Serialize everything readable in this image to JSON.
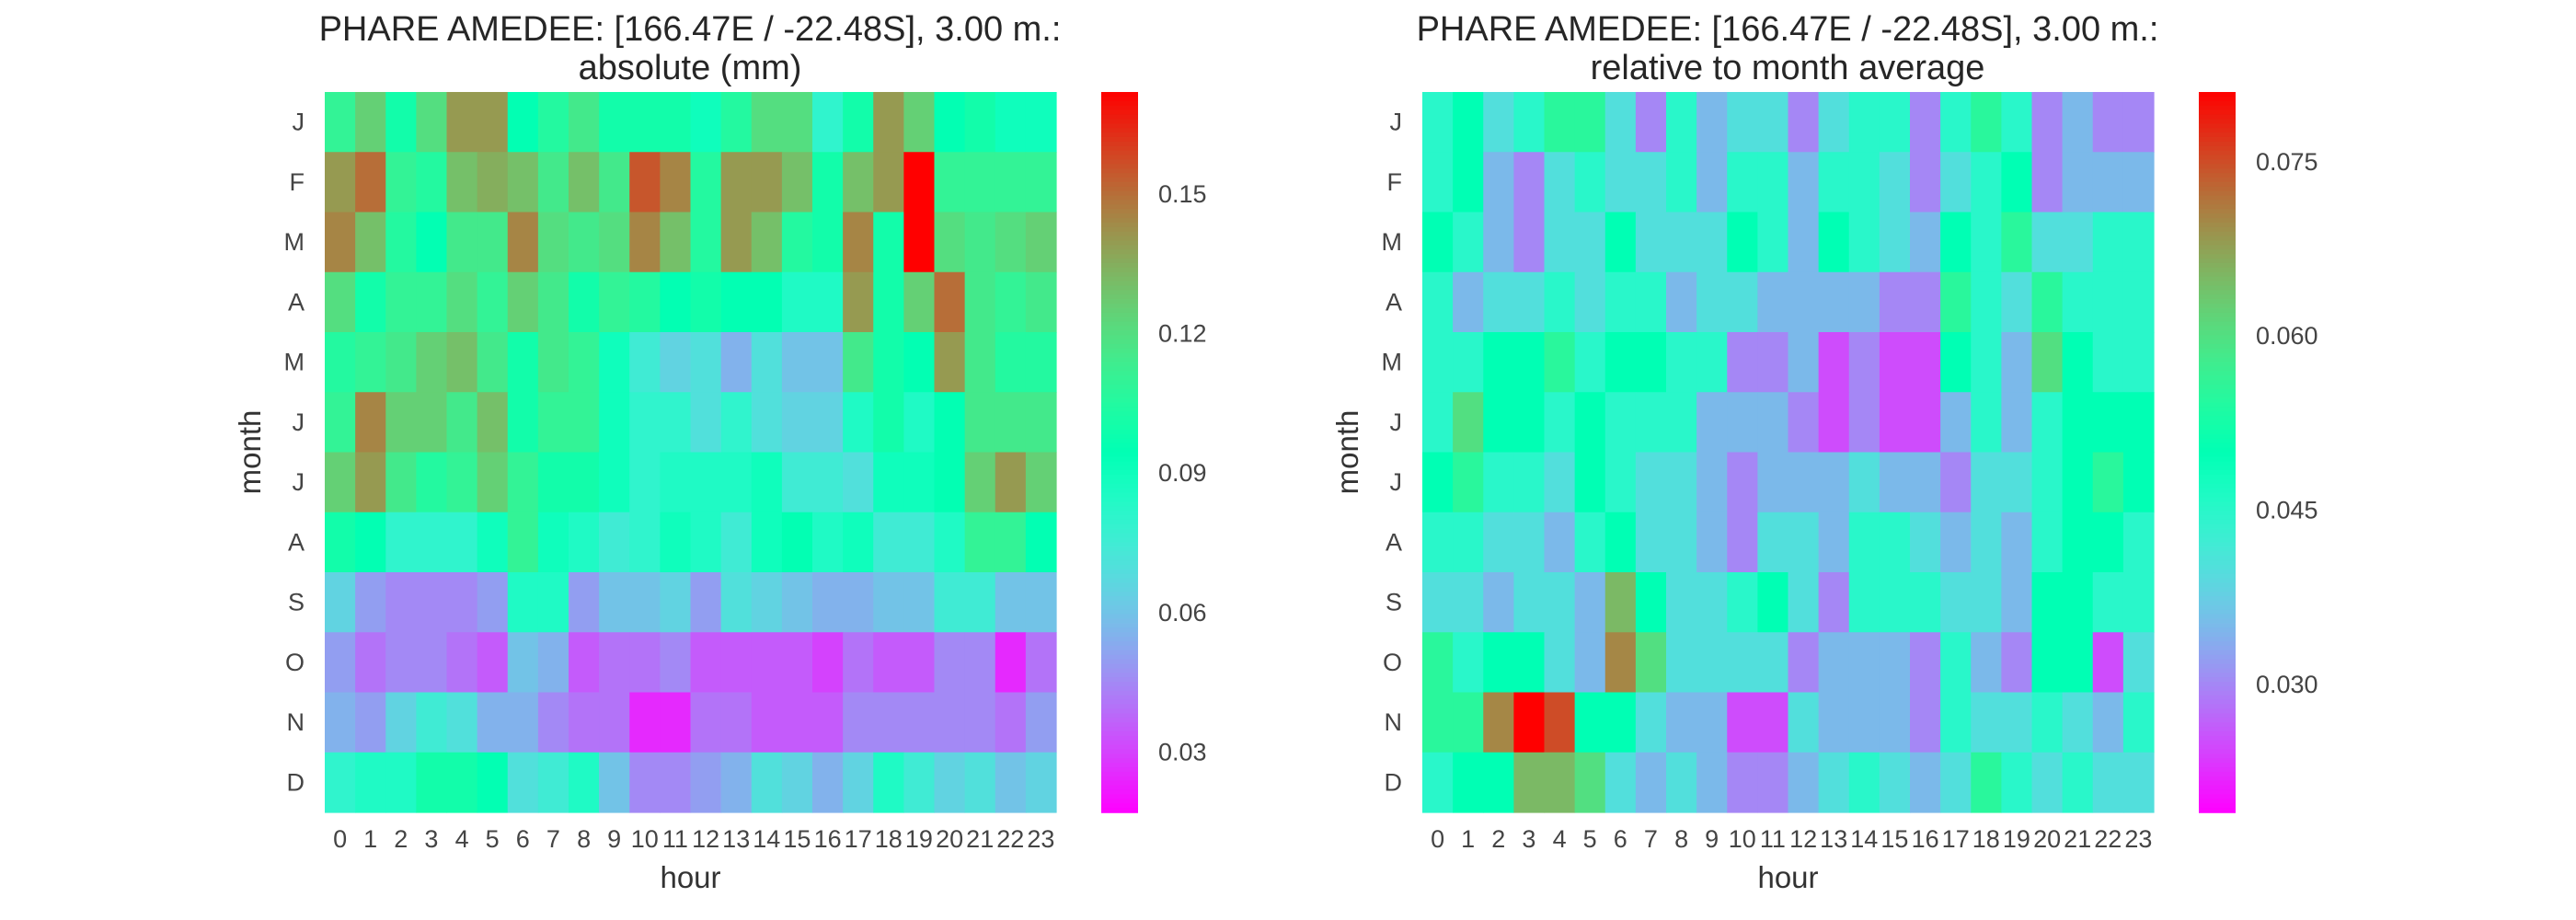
{
  "chart_data": [
    {
      "type": "heatmap",
      "title": "PHARE AMEDEE: [166.47E / -22.48S], 3.00 m.:",
      "subtitle": "absolute (mm)",
      "xlabel": "hour",
      "ylabel": "month",
      "x": [
        "0",
        "1",
        "2",
        "3",
        "4",
        "5",
        "6",
        "7",
        "8",
        "9",
        "10",
        "11",
        "12",
        "13",
        "14",
        "15",
        "16",
        "17",
        "18",
        "19",
        "20",
        "21",
        "22",
        "23"
      ],
      "y": [
        "J",
        "F",
        "M",
        "A",
        "M",
        "J",
        "J",
        "A",
        "S",
        "O",
        "N",
        "D"
      ],
      "colormap": "rainbow",
      "vmin": 0.017,
      "vmax": 0.172,
      "colorbar_ticks": [
        0.03,
        0.06,
        0.09,
        0.12,
        0.15
      ],
      "colorbar_tick_labels": [
        "0.03",
        "0.06",
        "0.09",
        "0.12",
        "0.15"
      ],
      "values": [
        [
          0.11,
          0.125,
          0.1,
          0.12,
          0.14,
          0.14,
          0.095,
          0.105,
          0.115,
          0.1,
          0.1,
          0.1,
          0.09,
          0.105,
          0.12,
          0.12,
          0.08,
          0.1,
          0.14,
          0.125,
          0.095,
          0.1,
          0.09,
          0.09
        ],
        [
          0.14,
          0.15,
          0.11,
          0.105,
          0.13,
          0.135,
          0.13,
          0.115,
          0.13,
          0.115,
          0.155,
          0.145,
          0.105,
          0.14,
          0.14,
          0.13,
          0.1,
          0.13,
          0.14,
          0.172,
          0.11,
          0.11,
          0.11,
          0.11
        ],
        [
          0.145,
          0.13,
          0.105,
          0.095,
          0.115,
          0.115,
          0.145,
          0.12,
          0.115,
          0.12,
          0.145,
          0.13,
          0.105,
          0.14,
          0.13,
          0.105,
          0.1,
          0.145,
          0.1,
          0.172,
          0.12,
          0.115,
          0.12,
          0.125
        ],
        [
          0.12,
          0.1,
          0.11,
          0.11,
          0.12,
          0.11,
          0.125,
          0.115,
          0.1,
          0.11,
          0.105,
          0.095,
          0.1,
          0.095,
          0.095,
          0.085,
          0.085,
          0.14,
          0.1,
          0.125,
          0.15,
          0.115,
          0.11,
          0.115
        ],
        [
          0.105,
          0.11,
          0.115,
          0.125,
          0.13,
          0.115,
          0.1,
          0.115,
          0.11,
          0.09,
          0.075,
          0.065,
          0.07,
          0.055,
          0.07,
          0.06,
          0.06,
          0.115,
          0.1,
          0.095,
          0.14,
          0.115,
          0.105,
          0.105
        ],
        [
          0.11,
          0.145,
          0.125,
          0.125,
          0.115,
          0.13,
          0.1,
          0.11,
          0.11,
          0.09,
          0.08,
          0.08,
          0.07,
          0.08,
          0.07,
          0.065,
          0.065,
          0.085,
          0.1,
          0.085,
          0.095,
          0.115,
          0.115,
          0.115
        ],
        [
          0.125,
          0.14,
          0.115,
          0.105,
          0.11,
          0.125,
          0.11,
          0.1,
          0.1,
          0.09,
          0.08,
          0.085,
          0.085,
          0.085,
          0.09,
          0.075,
          0.075,
          0.07,
          0.09,
          0.09,
          0.095,
          0.125,
          0.14,
          0.125
        ],
        [
          0.1,
          0.095,
          0.08,
          0.08,
          0.08,
          0.09,
          0.11,
          0.09,
          0.085,
          0.075,
          0.08,
          0.09,
          0.085,
          0.075,
          0.09,
          0.095,
          0.085,
          0.09,
          0.075,
          0.075,
          0.085,
          0.11,
          0.11,
          0.095
        ],
        [
          0.065,
          0.05,
          0.045,
          0.045,
          0.045,
          0.05,
          0.085,
          0.085,
          0.05,
          0.06,
          0.06,
          0.065,
          0.05,
          0.07,
          0.065,
          0.06,
          0.055,
          0.055,
          0.06,
          0.06,
          0.075,
          0.075,
          0.06,
          0.06
        ],
        [
          0.05,
          0.04,
          0.045,
          0.045,
          0.04,
          0.035,
          0.06,
          0.055,
          0.035,
          0.04,
          0.04,
          0.045,
          0.035,
          0.035,
          0.035,
          0.035,
          0.03,
          0.04,
          0.035,
          0.035,
          0.045,
          0.045,
          0.025,
          0.04
        ],
        [
          0.055,
          0.05,
          0.065,
          0.075,
          0.07,
          0.055,
          0.055,
          0.045,
          0.04,
          0.04,
          0.025,
          0.025,
          0.04,
          0.04,
          0.035,
          0.035,
          0.035,
          0.045,
          0.045,
          0.045,
          0.045,
          0.045,
          0.04,
          0.05
        ],
        [
          0.08,
          0.085,
          0.085,
          0.1,
          0.1,
          0.095,
          0.07,
          0.075,
          0.085,
          0.06,
          0.045,
          0.045,
          0.05,
          0.055,
          0.07,
          0.065,
          0.055,
          0.065,
          0.085,
          0.075,
          0.065,
          0.07,
          0.06,
          0.065
        ]
      ]
    },
    {
      "type": "heatmap",
      "title": "PHARE AMEDEE: [166.47E / -22.48S], 3.00 m.:",
      "subtitle": "relative to month average",
      "xlabel": "hour",
      "ylabel": "month",
      "x": [
        "0",
        "1",
        "2",
        "3",
        "4",
        "5",
        "6",
        "7",
        "8",
        "9",
        "10",
        "11",
        "12",
        "13",
        "14",
        "15",
        "16",
        "17",
        "18",
        "19",
        "20",
        "21",
        "22",
        "23"
      ],
      "y": [
        "J",
        "F",
        "M",
        "A",
        "M",
        "J",
        "J",
        "A",
        "S",
        "O",
        "N",
        "D"
      ],
      "colormap": "rainbow",
      "vmin": 0.019,
      "vmax": 0.081,
      "colorbar_ticks": [
        0.03,
        0.045,
        0.06,
        0.075
      ],
      "colorbar_tick_labels": [
        "0.030",
        "0.045",
        "0.060",
        "0.075"
      ],
      "values": [
        [
          0.045,
          0.05,
          0.04,
          0.045,
          0.055,
          0.055,
          0.04,
          0.03,
          0.045,
          0.035,
          0.04,
          0.04,
          0.03,
          0.04,
          0.045,
          0.045,
          0.03,
          0.045,
          0.055,
          0.045,
          0.03,
          0.035,
          0.03,
          0.03
        ],
        [
          0.045,
          0.05,
          0.035,
          0.03,
          0.04,
          0.045,
          0.04,
          0.04,
          0.045,
          0.035,
          0.045,
          0.045,
          0.035,
          0.045,
          0.045,
          0.04,
          0.03,
          0.04,
          0.045,
          0.05,
          0.03,
          0.035,
          0.035,
          0.035
        ],
        [
          0.05,
          0.045,
          0.035,
          0.03,
          0.04,
          0.04,
          0.05,
          0.04,
          0.04,
          0.04,
          0.05,
          0.045,
          0.035,
          0.05,
          0.045,
          0.04,
          0.035,
          0.05,
          0.045,
          0.055,
          0.04,
          0.04,
          0.045,
          0.045
        ],
        [
          0.045,
          0.035,
          0.04,
          0.04,
          0.045,
          0.04,
          0.045,
          0.045,
          0.035,
          0.04,
          0.04,
          0.035,
          0.035,
          0.035,
          0.035,
          0.03,
          0.03,
          0.055,
          0.045,
          0.04,
          0.055,
          0.045,
          0.045,
          0.045
        ],
        [
          0.045,
          0.045,
          0.05,
          0.05,
          0.055,
          0.045,
          0.05,
          0.05,
          0.045,
          0.045,
          0.03,
          0.03,
          0.035,
          0.025,
          0.03,
          0.025,
          0.025,
          0.05,
          0.045,
          0.035,
          0.06,
          0.05,
          0.045,
          0.045
        ],
        [
          0.045,
          0.06,
          0.05,
          0.05,
          0.045,
          0.05,
          0.045,
          0.045,
          0.045,
          0.035,
          0.035,
          0.035,
          0.03,
          0.025,
          0.03,
          0.025,
          0.025,
          0.035,
          0.045,
          0.035,
          0.045,
          0.05,
          0.05,
          0.05
        ],
        [
          0.05,
          0.055,
          0.045,
          0.045,
          0.04,
          0.05,
          0.045,
          0.04,
          0.04,
          0.035,
          0.03,
          0.035,
          0.035,
          0.035,
          0.04,
          0.035,
          0.035,
          0.03,
          0.04,
          0.04,
          0.045,
          0.05,
          0.055,
          0.05
        ],
        [
          0.045,
          0.045,
          0.04,
          0.04,
          0.035,
          0.045,
          0.05,
          0.04,
          0.04,
          0.035,
          0.03,
          0.04,
          0.04,
          0.035,
          0.045,
          0.045,
          0.04,
          0.035,
          0.04,
          0.035,
          0.045,
          0.05,
          0.05,
          0.045
        ],
        [
          0.04,
          0.04,
          0.035,
          0.04,
          0.04,
          0.035,
          0.065,
          0.05,
          0.04,
          0.04,
          0.045,
          0.05,
          0.04,
          0.03,
          0.045,
          0.045,
          0.045,
          0.04,
          0.04,
          0.035,
          0.05,
          0.05,
          0.045,
          0.045
        ],
        [
          0.055,
          0.045,
          0.05,
          0.05,
          0.04,
          0.035,
          0.07,
          0.06,
          0.04,
          0.04,
          0.04,
          0.04,
          0.03,
          0.035,
          0.035,
          0.035,
          0.03,
          0.045,
          0.035,
          0.03,
          0.05,
          0.05,
          0.025,
          0.04
        ],
        [
          0.055,
          0.055,
          0.07,
          0.081,
          0.075,
          0.05,
          0.05,
          0.04,
          0.035,
          0.035,
          0.025,
          0.025,
          0.04,
          0.035,
          0.035,
          0.035,
          0.03,
          0.045,
          0.04,
          0.04,
          0.045,
          0.04,
          0.035,
          0.045
        ],
        [
          0.045,
          0.05,
          0.05,
          0.065,
          0.065,
          0.06,
          0.04,
          0.035,
          0.04,
          0.035,
          0.03,
          0.03,
          0.035,
          0.04,
          0.045,
          0.04,
          0.035,
          0.04,
          0.055,
          0.045,
          0.04,
          0.045,
          0.04,
          0.04
        ]
      ]
    }
  ]
}
